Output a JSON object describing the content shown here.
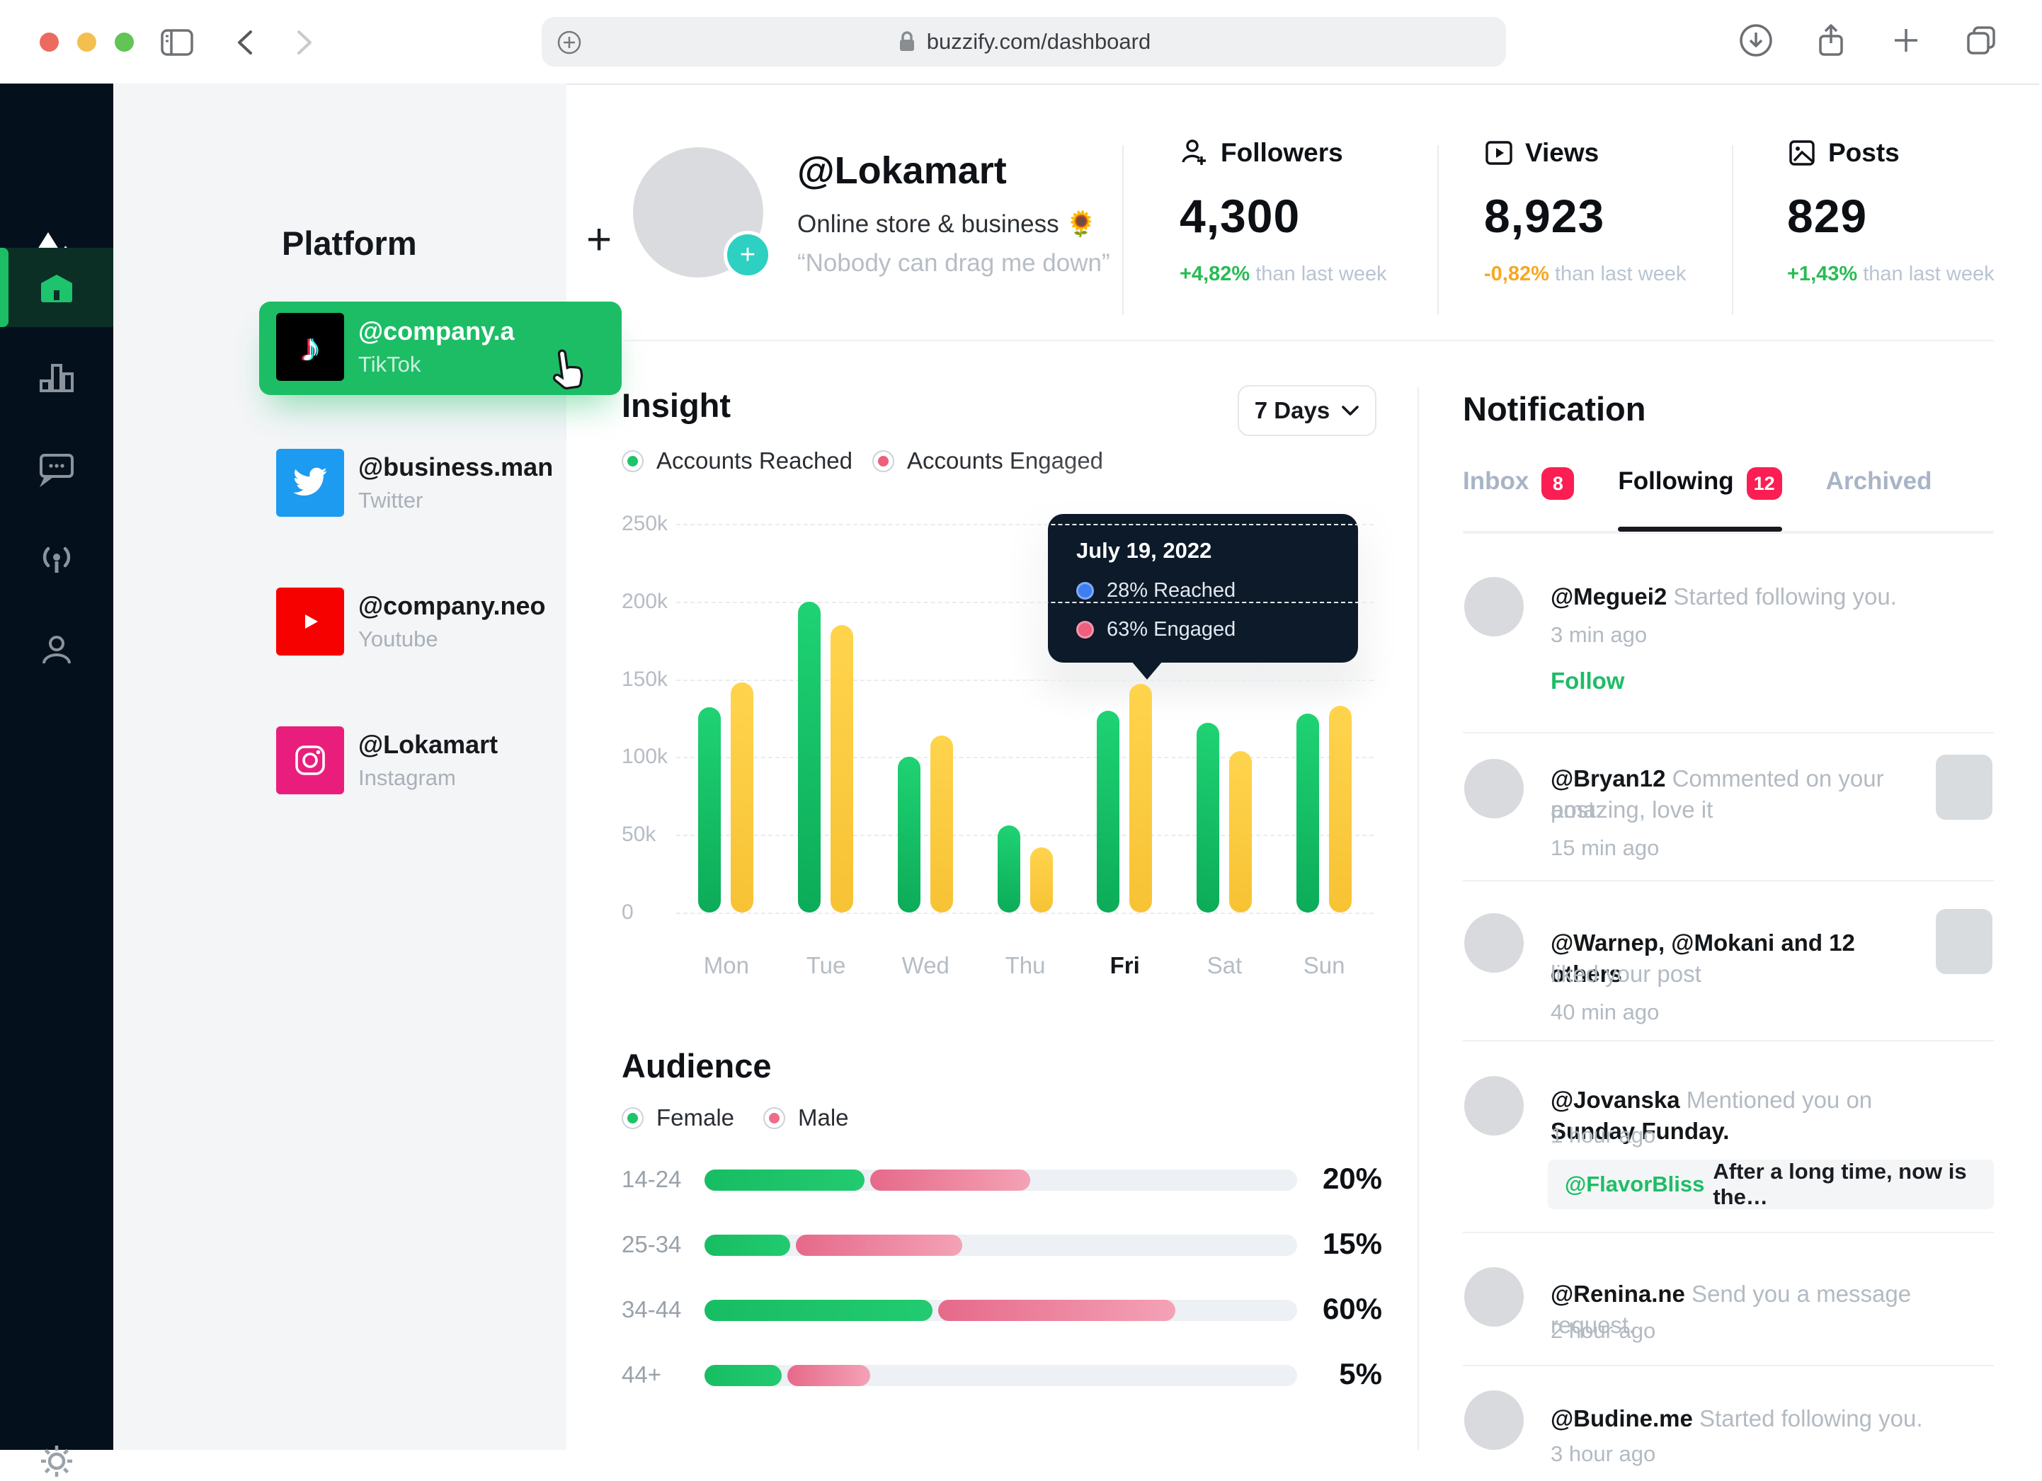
{
  "browser": {
    "url": "buzzify.com/dashboard"
  },
  "colors": {
    "accent_green": "#1dbd66",
    "badge_red": "#fa1e53",
    "rail_bg": "#04111d",
    "bar_green_top": "#1fd373",
    "bar_green_bottom": "#0cab58",
    "bar_yellow_top": "#ffd44d",
    "bar_yellow_bottom": "#f7c234",
    "female_green": "#1ec468",
    "male_pink": "#ed6d8d",
    "delta_up": "#29bb54",
    "delta_down": "#f7a823",
    "tooltip_bg": "#0c1a29",
    "reached_dot": "#3f7ef0",
    "engaged_dot": "#ee5f7d",
    "twitter_blue": "#1d9bf0",
    "youtube_red": "#f70000",
    "instagram_pink": "#e91e7c",
    "tiktok_black": "#000000"
  },
  "icons": {
    "browser": [
      "close-icon",
      "minimize-icon",
      "zoom-icon",
      "sidebar-toggle-icon",
      "back-icon",
      "forward-icon",
      "add-site-icon",
      "lock-icon",
      "download-icon",
      "share-icon",
      "new-tab-icon",
      "tabs-icon"
    ],
    "rail": [
      "logo-mountain-icon",
      "home-icon",
      "analytics-icon",
      "messages-icon",
      "broadcast-icon",
      "profile-icon",
      "settings-gear-icon"
    ],
    "stats": [
      "followers-icon",
      "views-icon",
      "posts-icon"
    ],
    "misc": [
      "plus-icon",
      "chevron-down-icon",
      "avatar-add-icon",
      "cursor-pointer-icon",
      "tiktok-icon",
      "twitter-icon",
      "youtube-icon",
      "instagram-icon"
    ]
  },
  "platform": {
    "title": "Platform",
    "add_label": "+",
    "accounts": [
      {
        "handle": "@company.a",
        "network": "TikTok",
        "selected": true
      },
      {
        "handle": "@business.man",
        "network": "Twitter",
        "selected": false
      },
      {
        "handle": "@company.neo",
        "network": "Youtube",
        "selected": false
      },
      {
        "handle": "@Lokamart",
        "network": "Instagram",
        "selected": false
      }
    ]
  },
  "profile": {
    "handle": "@Lokamart",
    "bio": "Online store & business 🌻",
    "quote": "“Nobody can drag me down”"
  },
  "stats": [
    {
      "label": "Followers",
      "icon": "followers-icon",
      "value": "4,300",
      "delta": "+4,82%",
      "delta_dir": "up",
      "suffix": " than last week"
    },
    {
      "label": "Views",
      "icon": "views-icon",
      "value": "8,923",
      "delta": "-0,82%",
      "delta_dir": "down",
      "suffix": " than last week"
    },
    {
      "label": "Posts",
      "icon": "posts-icon",
      "value": "829",
      "delta": "+1,43%",
      "delta_dir": "up",
      "suffix": " than last week"
    }
  ],
  "insight": {
    "title": "Insight",
    "range_label": "7 Days",
    "legend": [
      {
        "label": "Accounts Reached",
        "color_key": "female_green"
      },
      {
        "label": "Accounts Engaged",
        "color_key": "engaged_dot"
      }
    ]
  },
  "chart_data": {
    "type": "bar",
    "title": "Insight",
    "categories": [
      "Mon",
      "Tue",
      "Wed",
      "Thu",
      "Fri",
      "Sat",
      "Sun"
    ],
    "series": [
      {
        "name": "Accounts Reached",
        "unit": "k",
        "values": [
          132,
          200,
          100,
          56,
          130,
          122,
          128
        ]
      },
      {
        "name": "Accounts Engaged",
        "unit": "k",
        "values": [
          148,
          185,
          114,
          42,
          147,
          104,
          133
        ]
      }
    ],
    "ylim": [
      0,
      250
    ],
    "ytick_values": [
      250,
      200,
      150,
      100,
      50,
      0
    ],
    "ytick_labels": [
      "250k",
      "200k",
      "150k",
      "100k",
      "50k",
      "0"
    ],
    "grid": "dashed-horizontal",
    "legend_position": "top-left",
    "highlighted_category": "Fri",
    "tooltip": {
      "date": "July 19, 2022",
      "rows": [
        {
          "text": "28% Reached",
          "dot_color_key": "reached_dot"
        },
        {
          "text": "63% Engaged",
          "dot_color_key": "engaged_dot"
        }
      ]
    }
  },
  "audience": {
    "title": "Audience",
    "legend": [
      {
        "label": "Female",
        "color_key": "female_green"
      },
      {
        "label": "Male",
        "color_key": "male_pink"
      }
    ],
    "chart_data": {
      "type": "bar",
      "orientation": "horizontal",
      "categories": [
        "14-24",
        "25-34",
        "34-44",
        "44+"
      ],
      "value_labels": [
        "20%",
        "15%",
        "60%",
        "5%"
      ],
      "series": [
        {
          "name": "Female",
          "track_pct": [
            27,
            14.5,
            38.5,
            13
          ]
        },
        {
          "name": "Male",
          "track_pct": [
            27,
            28,
            40,
            14
          ]
        }
      ]
    }
  },
  "notifications": {
    "title": "Notification",
    "tabs": [
      {
        "label": "Inbox",
        "badge": "8",
        "active": false
      },
      {
        "label": "Following",
        "badge": "12",
        "active": true
      },
      {
        "label": "Archived",
        "badge": "",
        "active": false
      }
    ],
    "follow_label": "Follow",
    "items": [
      {
        "lines": [
          [
            {
              "t": "@Meguei2",
              "s": "b"
            },
            {
              "t": " Started following you.",
              "s": "m"
            }
          ]
        ],
        "time": "3 min ago",
        "follow": true
      },
      {
        "lines": [
          [
            {
              "t": "@Bryan12",
              "s": "b"
            },
            {
              "t": " Commented on your post:",
              "s": "m"
            }
          ],
          [
            {
              "t": "amazing, love it",
              "s": "m"
            }
          ]
        ],
        "time": "15 min ago",
        "thumb": true
      },
      {
        "lines": [
          [
            {
              "t": "@Warnep, @Mokani and 12 others",
              "s": "b"
            }
          ],
          [
            {
              "t": "liked your post",
              "s": "m"
            }
          ]
        ],
        "time": "40 min ago",
        "thumb": true
      },
      {
        "lines": [
          [
            {
              "t": "@Jovanska",
              "s": "b"
            },
            {
              "t": " Mentioned you on ",
              "s": "m"
            },
            {
              "t": "Sunday Funday.",
              "s": "b"
            }
          ]
        ],
        "time": "1 hour ago",
        "quote": [
          {
            "t": "@FlavorBliss",
            "s": "g"
          },
          {
            "t": "After a long time, now is the…",
            "s": "d"
          }
        ]
      },
      {
        "lines": [
          [
            {
              "t": "@Renina.ne",
              "s": "b"
            },
            {
              "t": " Send you a message request.",
              "s": "m"
            }
          ]
        ],
        "time": "2 hour ago"
      },
      {
        "lines": [
          [
            {
              "t": "@Budine.me",
              "s": "b"
            },
            {
              "t": " Started following you.",
              "s": "m"
            }
          ]
        ],
        "time": "3 hour ago"
      }
    ]
  }
}
